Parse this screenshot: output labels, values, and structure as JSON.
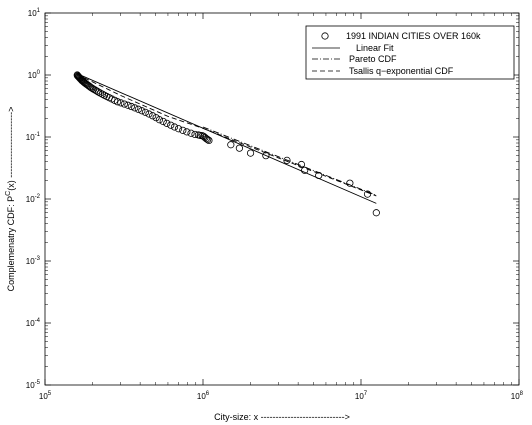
{
  "chart_data": {
    "type": "scatter",
    "title": "",
    "xlabel": "City-size: x ---------------------------->",
    "ylabel_prefix": "Complemenatry CDF: P",
    "ylabel_sup": "C",
    "ylabel_suffix": "(x) ---------------------->",
    "x_scale": "log",
    "y_scale": "log",
    "xlim": [
      100000,
      100000000
    ],
    "ylim": [
      1e-05,
      10
    ],
    "x_ticks": [
      {
        "base": "10",
        "exp": "5",
        "value": 100000
      },
      {
        "base": "10",
        "exp": "6",
        "value": 1000000
      },
      {
        "base": "10",
        "exp": "7",
        "value": 10000000
      },
      {
        "base": "10",
        "exp": "8",
        "value": 100000000
      }
    ],
    "y_ticks": [
      {
        "base": "10",
        "exp": "1",
        "value": 10
      },
      {
        "base": "10",
        "exp": "0",
        "value": 1
      },
      {
        "base": "10",
        "exp": "-1",
        "value": 0.1
      },
      {
        "base": "10",
        "exp": "-2",
        "value": 0.01
      },
      {
        "base": "10",
        "exp": "-3",
        "value": 0.001
      },
      {
        "base": "10",
        "exp": "-4",
        "value": 0.0001
      },
      {
        "base": "10",
        "exp": "-5",
        "value": 1e-05
      }
    ],
    "grid": false,
    "legend_position": "top-right",
    "series": [
      {
        "name": "1991 INDIAN CITIES OVER 160k",
        "kind": "markers",
        "points": [
          [
            160000,
            1.0
          ],
          [
            161000,
            0.97
          ],
          [
            162500,
            0.95
          ],
          [
            163500,
            0.93
          ],
          [
            165000,
            0.91
          ],
          [
            166000,
            0.89
          ],
          [
            167500,
            0.87
          ],
          [
            169000,
            0.85
          ],
          [
            170500,
            0.83
          ],
          [
            172000,
            0.81
          ],
          [
            174000,
            0.79
          ],
          [
            176000,
            0.77
          ],
          [
            178000,
            0.75
          ],
          [
            180500,
            0.73
          ],
          [
            183000,
            0.71
          ],
          [
            186000,
            0.69
          ],
          [
            189000,
            0.67
          ],
          [
            192000,
            0.65
          ],
          [
            195000,
            0.63
          ],
          [
            199000,
            0.61
          ],
          [
            203000,
            0.59
          ],
          [
            208000,
            0.57
          ],
          [
            213000,
            0.55
          ],
          [
            218000,
            0.53
          ],
          [
            224000,
            0.51
          ],
          [
            231000,
            0.49
          ],
          [
            238000,
            0.47
          ],
          [
            246000,
            0.45
          ],
          [
            255000,
            0.43
          ],
          [
            265000,
            0.41
          ],
          [
            276000,
            0.39
          ],
          [
            288000,
            0.37
          ],
          [
            302000,
            0.355
          ],
          [
            318000,
            0.34
          ],
          [
            335000,
            0.325
          ],
          [
            352000,
            0.31
          ],
          [
            370000,
            0.295
          ],
          [
            390000,
            0.28
          ],
          [
            410000,
            0.265
          ],
          [
            432000,
            0.25
          ],
          [
            455000,
            0.235
          ],
          [
            480000,
            0.22
          ],
          [
            505000,
            0.205
          ],
          [
            530000,
            0.19
          ],
          [
            560000,
            0.178
          ],
          [
            590000,
            0.166
          ],
          [
            625000,
            0.155
          ],
          [
            660000,
            0.145
          ],
          [
            700000,
            0.136
          ],
          [
            745000,
            0.128
          ],
          [
            790000,
            0.121
          ],
          [
            840000,
            0.115
          ],
          [
            890000,
            0.11
          ],
          [
            935000,
            0.108
          ],
          [
            960000,
            0.106
          ],
          [
            990000,
            0.105
          ],
          [
            1010000,
            0.102
          ],
          [
            1030000,
            0.098
          ],
          [
            1050000,
            0.094
          ],
          [
            1070000,
            0.091
          ],
          [
            1090000,
            0.088
          ],
          [
            1500000,
            0.075
          ],
          [
            1700000,
            0.066
          ],
          [
            2000000,
            0.055
          ],
          [
            2500000,
            0.05
          ],
          [
            3400000,
            0.042
          ],
          [
            4200000,
            0.036
          ],
          [
            4400000,
            0.029
          ],
          [
            5400000,
            0.024
          ],
          [
            8500000,
            0.018
          ],
          [
            11000000,
            0.012
          ],
          [
            12500000,
            0.006
          ]
        ]
      },
      {
        "name": "Linear Fit",
        "kind": "line",
        "dash": "solid",
        "points": [
          [
            160000,
            1.05
          ],
          [
            12500000,
            0.0085
          ]
        ]
      },
      {
        "name": "Pareto CDF",
        "kind": "line",
        "dash": "dashdot",
        "points": [
          [
            1000000,
            0.145
          ],
          [
            12500000,
            0.0115
          ]
        ]
      },
      {
        "name": "Tsallis q−exponential CDF",
        "kind": "line",
        "dash": "dashed",
        "points": [
          [
            160000,
            1.02
          ],
          [
            300000,
            0.47
          ],
          [
            600000,
            0.215
          ],
          [
            1000000,
            0.138
          ],
          [
            3000000,
            0.046
          ],
          [
            8000000,
            0.0175
          ],
          [
            12500000,
            0.0112
          ]
        ]
      }
    ]
  }
}
